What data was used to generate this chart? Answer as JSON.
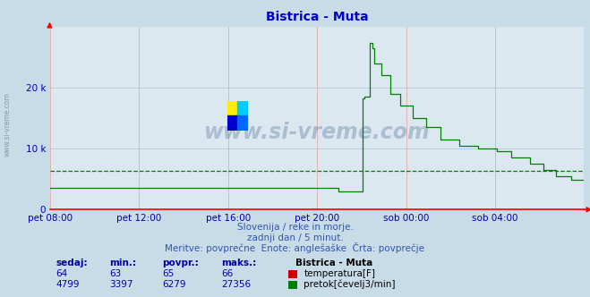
{
  "title": "Bistrica - Muta",
  "title_color": "#0000cc",
  "bg_color": "#c8dce8",
  "plot_bg_color": "#dce8f0",
  "grid_color_h": "#b8c8d8",
  "grid_color_v": "#e8a8a8",
  "flow_color": "#008000",
  "temp_color": "#cc0000",
  "avg_flow_color": "#008000",
  "tick_color": "#0000aa",
  "xtick_labels": [
    "pet 08:00",
    "pet 12:00",
    "pet 16:00",
    "pet 20:00",
    "sob 00:00",
    "sob 04:00"
  ],
  "ytick_labels": [
    "0",
    "10 k",
    "20 k"
  ],
  "ytick_values": [
    0,
    10000,
    20000
  ],
  "ylim": [
    0,
    30000
  ],
  "n_points": 288,
  "avg_flow": 6279,
  "watermark_text": "www.si-vreme.com",
  "subtitle_lines": [
    "Slovenija / reke in morje.",
    "zadnji dan / 5 minut.",
    "Meritve: povprečne  Enote: anglešaške  Črta: povprečje"
  ],
  "legend_title": "Bistrica - Muta",
  "legend_items": [
    {
      "label": "temperatura[F]",
      "color": "#cc0000",
      "sedaj": 64,
      "min": 63,
      "povpr": 65,
      "maks": 66
    },
    {
      "label": "pretok[čevelj3/min]",
      "color": "#008000",
      "sedaj": 4799,
      "min": 3397,
      "povpr": 6279,
      "maks": 27356
    }
  ],
  "table_headers": [
    "sedaj:",
    "min.:",
    "povpr.:",
    "maks.:"
  ]
}
